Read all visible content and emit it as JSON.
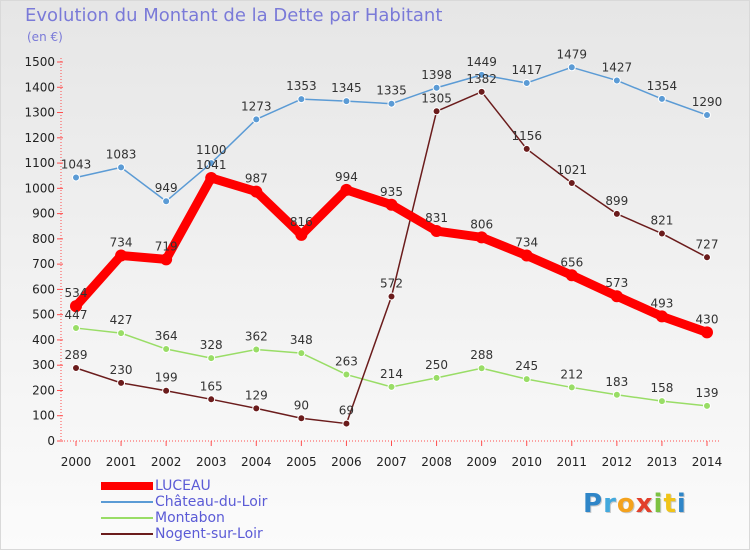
{
  "chart_data": {
    "type": "line",
    "title": "Evolution du Montant de la Dette par Habitant",
    "subtitle": "(en €)",
    "xlabel": "",
    "ylabel": "",
    "ylim": [
      0,
      1500
    ],
    "y_ticks": [
      0,
      100,
      200,
      300,
      400,
      500,
      600,
      700,
      800,
      900,
      1000,
      1100,
      1200,
      1300,
      1400,
      1500
    ],
    "grid": false,
    "legend_position": "bottom-left",
    "categories": [
      "2000",
      "2001",
      "2002",
      "2003",
      "2004",
      "2005",
      "2006",
      "2007",
      "2008",
      "2009",
      "2010",
      "2011",
      "2012",
      "2013",
      "2014"
    ],
    "series": [
      {
        "name": "LUCEAU",
        "color": "#ff0000",
        "values": [
          534,
          734,
          719,
          1041,
          987,
          816,
          994,
          935,
          831,
          806,
          734,
          656,
          573,
          493,
          430
        ]
      },
      {
        "name": "Château-du-Loir",
        "color": "#5b9bd5",
        "values": [
          1043,
          1083,
          949,
          1100,
          1273,
          1353,
          1345,
          1335,
          1398,
          1449,
          1417,
          1479,
          1427,
          1354,
          1290
        ]
      },
      {
        "name": "Montabon",
        "color": "#99dd66",
        "values": [
          447,
          427,
          364,
          328,
          362,
          348,
          263,
          214,
          250,
          288,
          245,
          212,
          183,
          158,
          139
        ]
      },
      {
        "name": "Nogent-sur-Loir",
        "color": "#6b1c1c",
        "values": [
          289,
          230,
          199,
          165,
          129,
          90,
          69,
          572,
          1305,
          1382,
          1156,
          1021,
          899,
          821,
          727
        ]
      }
    ]
  },
  "logo": {
    "letters": [
      "P",
      "r",
      "o",
      "x",
      "i",
      "t",
      "i"
    ]
  }
}
